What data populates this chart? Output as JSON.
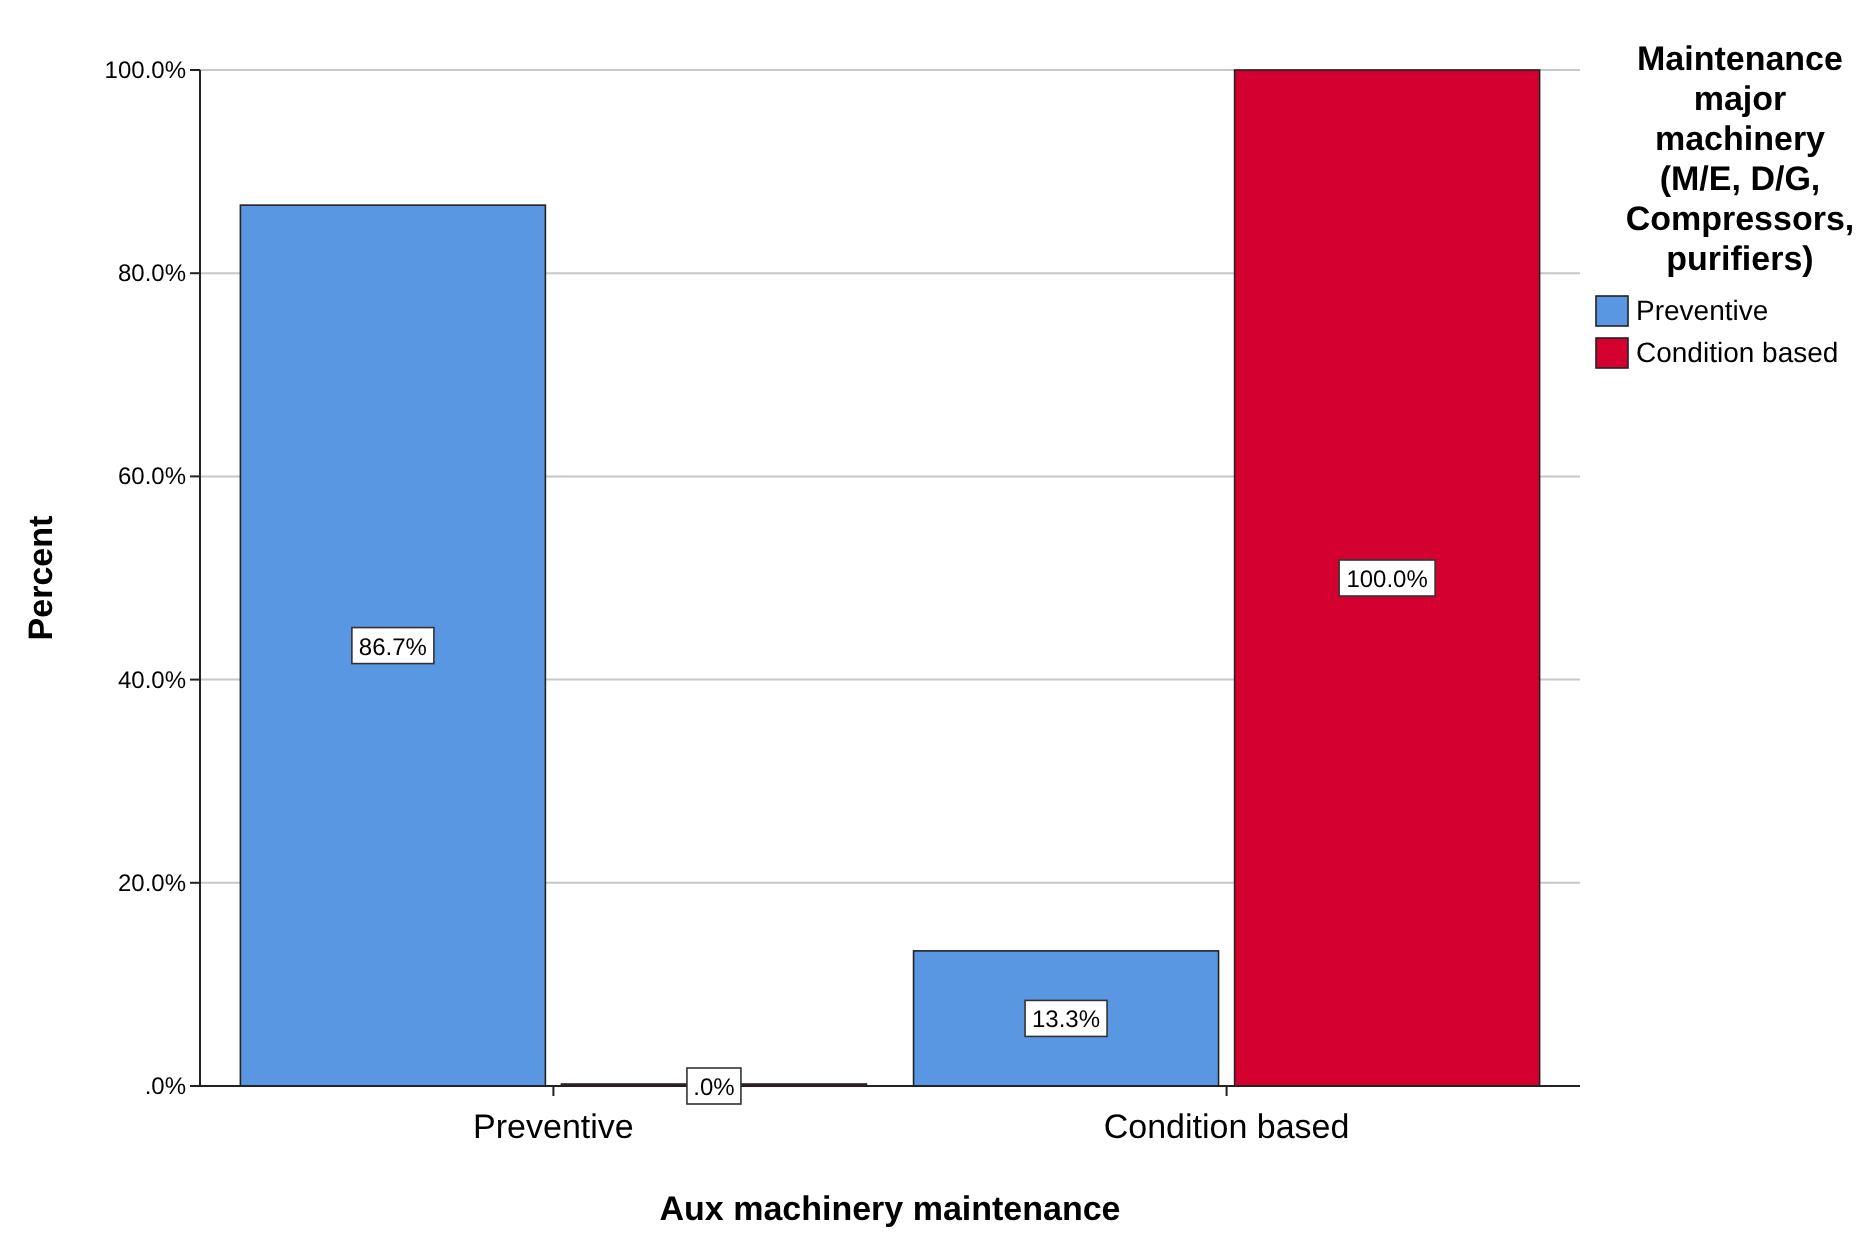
{
  "chart_data": {
    "type": "bar",
    "xlabel": "Aux machinery maintenance",
    "ylabel": "Percent",
    "legend_title": "Maintenance major machinery (M/E, D/G, Compressors, purifiers)",
    "categories": [
      "Preventive",
      "Condition based"
    ],
    "series": [
      {
        "name": "Preventive",
        "color": "#5a97e2",
        "values": [
          86.7,
          13.3
        ],
        "value_labels": [
          "86.7%",
          "13.3%"
        ]
      },
      {
        "name": "Condition based",
        "color": "#d4002f",
        "values": [
          0,
          100
        ],
        "value_labels": [
          ".0%",
          "100.0%"
        ]
      }
    ],
    "ylim": [
      0,
      100
    ],
    "yticks": [
      {
        "value": 0,
        "label": ".0%"
      },
      {
        "value": 20,
        "label": "20.0%"
      },
      {
        "value": 40,
        "label": "40.0%"
      },
      {
        "value": 60,
        "label": "60.0%"
      },
      {
        "value": 80,
        "label": "80.0%"
      },
      {
        "value": 100,
        "label": "100.0%"
      }
    ],
    "grid": "y",
    "legend": "top right"
  }
}
